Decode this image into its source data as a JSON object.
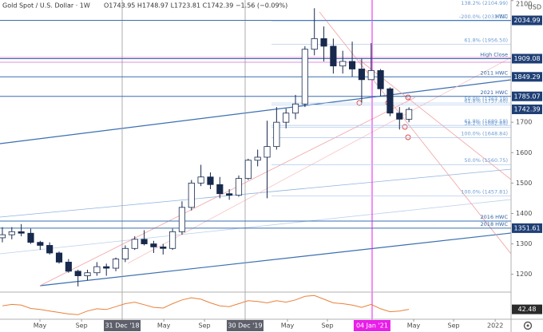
{
  "chart_data": {
    "type": "candlestick",
    "title": "Gold Spot / U.S. Dollar · 1W",
    "ohlc_header": "O1743.95 H1748.97 L1723.81 C1742.39 −1.56 (−0.09%)",
    "currency": "USD",
    "x": [
      1,
      5,
      9,
      13,
      17,
      21,
      25,
      29,
      33,
      37,
      41,
      45,
      49,
      53,
      57,
      61,
      65,
      69,
      73,
      77,
      81,
      85,
      89,
      93,
      97,
      101,
      105,
      109,
      113,
      117,
      121,
      125,
      129,
      133,
      137,
      141,
      145,
      149,
      153,
      157,
      161,
      165,
      169,
      173
    ],
    "open": [
      1320,
      1330,
      1340,
      1335,
      1305,
      1295,
      1270,
      1240,
      1210,
      1195,
      1205,
      1225,
      1220,
      1250,
      1285,
      1315,
      1300,
      1290,
      1285,
      1340,
      1420,
      1500,
      1520,
      1495,
      1465,
      1460,
      1515,
      1575,
      1585,
      1620,
      1700,
      1730,
      1760,
      1940,
      1975,
      1950,
      1885,
      1900,
      1875,
      1840,
      1870,
      1810,
      1730,
      1710
    ],
    "high": [
      1355,
      1355,
      1365,
      1350,
      1310,
      1305,
      1275,
      1250,
      1215,
      1215,
      1240,
      1235,
      1255,
      1295,
      1325,
      1345,
      1310,
      1300,
      1350,
      1440,
      1510,
      1560,
      1535,
      1520,
      1480,
      1525,
      1580,
      1610,
      1705,
      1750,
      1745,
      1790,
      1950,
      2075,
      2015,
      1975,
      1935,
      1965,
      1910,
      1960,
      1875,
      1815,
      1750,
      1749
    ],
    "low": [
      1305,
      1315,
      1325,
      1300,
      1280,
      1265,
      1235,
      1205,
      1160,
      1180,
      1195,
      1195,
      1210,
      1240,
      1280,
      1295,
      1270,
      1265,
      1280,
      1330,
      1410,
      1490,
      1480,
      1450,
      1445,
      1455,
      1510,
      1555,
      1450,
      1610,
      1680,
      1710,
      1750,
      1920,
      1900,
      1860,
      1860,
      1850,
      1765,
      1840,
      1785,
      1720,
      1676,
      1700
    ],
    "close": [
      1330,
      1340,
      1335,
      1305,
      1295,
      1270,
      1240,
      1210,
      1195,
      1205,
      1225,
      1220,
      1250,
      1285,
      1315,
      1300,
      1290,
      1285,
      1340,
      1420,
      1500,
      1520,
      1495,
      1465,
      1460,
      1515,
      1575,
      1585,
      1620,
      1700,
      1730,
      1760,
      1940,
      1975,
      1950,
      1885,
      1900,
      1875,
      1840,
      1870,
      1810,
      1730,
      1710,
      1742
    ],
    "up_color": "#ffffff",
    "down_color": "#17294d",
    "edge_color": "#17294d",
    "xlim": [
      0,
      216.2
    ],
    "xticks": [
      {
        "value": 16.9,
        "label": "May"
      },
      {
        "value": 34.5,
        "label": "Sep"
      },
      {
        "value": 51.7,
        "label": "31 Dec '18"
      },
      {
        "value": 69.3,
        "label": "May"
      },
      {
        "value": 86.5,
        "label": "Sep"
      },
      {
        "value": 103.7,
        "label": "30 Dec '19"
      },
      {
        "value": 121.6,
        "label": "May"
      },
      {
        "value": 138.5,
        "label": "Sep"
      },
      {
        "value": 157.4,
        "label": "04 Jan '21"
      },
      {
        "value": 175,
        "label": "May"
      },
      {
        "value": 191.9,
        "label": "Sep"
      },
      {
        "value": 209.5,
        "label": "2022"
      }
    ],
    "ylim": [
      1144,
      2102
    ],
    "yticks": [
      1200,
      1300,
      1400,
      1500,
      1600,
      1700,
      2100
    ],
    "levels": [
      {
        "value": 2104.99,
        "label": "138.2% (2104.99)"
      },
      {
        "value": 2034.99,
        "label": "HWC"
      },
      {
        "value": 2033.12,
        "label": "-200.0% (2033.12)"
      },
      {
        "value": 1956.5,
        "label": "61.8% (1956.50)"
      },
      {
        "value": 1909.08,
        "label": "High Close"
      },
      {
        "value": 1849.29,
        "label": "2011 HWC"
      },
      {
        "value": 1785.07,
        "label": "2021 HWC"
      },
      {
        "value": 1763.19,
        "label": "50.0% (1763.19)"
      },
      {
        "value": 1757.4,
        "label": "61.8% (1757.40)"
      },
      {
        "value": 1689.58,
        "label": "61.8% (1689.58)"
      },
      {
        "value": 1682.84,
        "label": "38.2% (1682.84)"
      },
      {
        "value": 1648.84,
        "label": "100.0% (1648.84)"
      },
      {
        "value": 1560.75,
        "label": "50.0% (1560.75)"
      },
      {
        "value": 1457.81,
        "label": "100.0% (1457.81)"
      },
      {
        "value": 1375,
        "label": "2016 HWC"
      },
      {
        "value": 1351.61,
        "label": "2018 HWC"
      }
    ],
    "price_labels": [
      2034.99,
      1909.08,
      1849.29,
      1785.07,
      1742.39,
      1351.61
    ],
    "rsi": {
      "values": [
        52,
        56,
        54,
        45,
        42,
        38,
        34,
        30,
        28,
        38,
        44,
        42,
        50,
        58,
        62,
        55,
        48,
        46,
        58,
        68,
        74,
        70,
        60,
        52,
        50,
        58,
        66,
        64,
        60,
        66,
        62,
        68,
        78,
        80,
        70,
        60,
        58,
        54,
        48,
        56,
        44,
        36,
        38,
        42.48
      ],
      "ylim": [
        20,
        85
      ],
      "color": "#e8813a",
      "last": 42.48
    }
  }
}
